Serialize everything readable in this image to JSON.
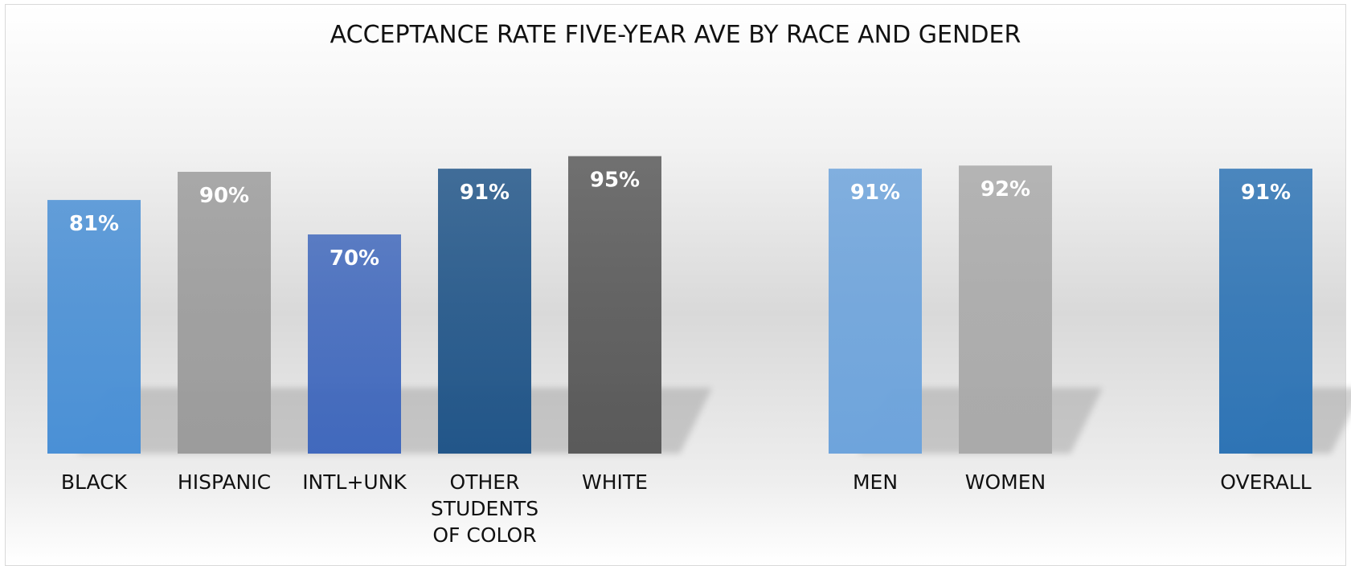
{
  "chart_data": {
    "type": "bar",
    "title": "ACCEPTANCE RATE FIVE-YEAR AVE BY RACE AND GENDER",
    "categories": [
      "BLACK",
      "HISPANIC",
      "INTL+UNK",
      "OTHER STUDENTS OF COLOR",
      "WHITE",
      null,
      "MEN",
      "WOMEN",
      null,
      "OVERALL"
    ],
    "values": [
      81,
      90,
      70,
      91,
      95,
      null,
      91,
      92,
      null,
      91
    ],
    "value_labels": [
      "81%",
      "90%",
      "70%",
      "91%",
      "95%",
      null,
      "91%",
      "92%",
      null,
      "91%"
    ],
    "colors": [
      "#4a90d6",
      "#9c9c9c",
      "#4169bd",
      "#225689",
      "#5a5a5a",
      null,
      "#6ea4dc",
      "#aaaaaa",
      null,
      "#2e74b5"
    ],
    "ylim": [
      0,
      100
    ]
  }
}
